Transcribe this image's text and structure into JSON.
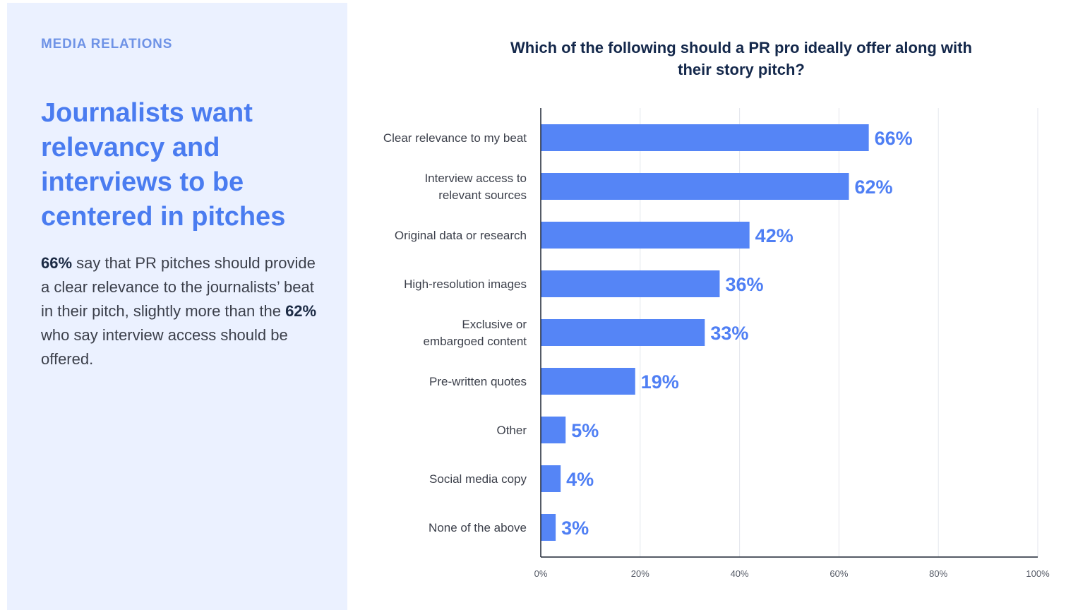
{
  "sidebar": {
    "kicker": "MEDIA RELATIONS",
    "headline": "Journalists want relevancy and interviews to be centered in pitches",
    "body": {
      "stat1": "66%",
      "text1": " say that PR pitches should provide a clear relevance to the journalists’ beat in their pitch, slightly more than the ",
      "stat2": "62%",
      "text2": " who say interview access should be offered."
    }
  },
  "colors": {
    "bar": "#5585f6",
    "value_label": "#4f7ff4",
    "panel": "#ebf1ff",
    "headline": "#4a7cf0"
  },
  "chart_data": {
    "type": "bar",
    "orientation": "horizontal",
    "title": "Which of the following should a PR pro ideally offer along with their story pitch?",
    "categories": [
      [
        "Clear relevance to my beat"
      ],
      [
        "Interview access to",
        "relevant sources"
      ],
      [
        "Original data or research"
      ],
      [
        "High-resolution images"
      ],
      [
        "Exclusive or",
        "embargoed content"
      ],
      [
        "Pre-written quotes"
      ],
      [
        "Other"
      ],
      [
        "Social media copy"
      ],
      [
        "None of the above"
      ]
    ],
    "values": [
      66,
      62,
      42,
      36,
      33,
      19,
      5,
      4,
      3
    ],
    "value_labels": [
      "66%",
      "62%",
      "42%",
      "36%",
      "33%",
      "19%",
      "5%",
      "4%",
      "3%"
    ],
    "xlim": [
      0,
      100
    ],
    "xticks": [
      0,
      20,
      40,
      60,
      80,
      100
    ],
    "xtick_labels": [
      "0%",
      "20%",
      "40%",
      "60%",
      "80%",
      "100%"
    ],
    "grid": true,
    "legend": "none"
  }
}
